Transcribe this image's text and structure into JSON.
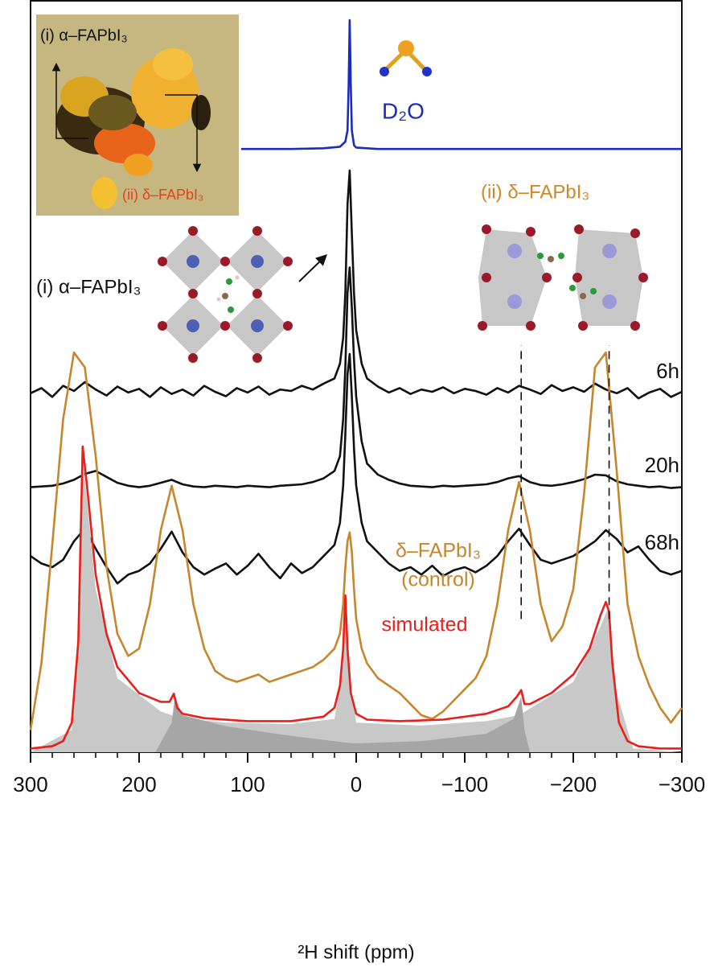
{
  "chart_data": {
    "type": "line",
    "xlabel": "²H shift (ppm)",
    "xlim": [
      300,
      -300
    ],
    "ylim": [
      0,
      100
    ],
    "xticks": [
      300,
      200,
      100,
      0,
      {
        "value": -100,
        "label": "−100"
      },
      {
        "value": -200,
        "label": "−200"
      },
      {
        "value": -300,
        "label": "−300"
      }
    ],
    "xminor": [
      280,
      260,
      240,
      220,
      180,
      160,
      140,
      120,
      80,
      60,
      40,
      20,
      -20,
      -40,
      -60,
      -80,
      -120,
      -140,
      -160,
      -180,
      -220,
      -240,
      -260,
      -280
    ],
    "x": [
      300,
      290,
      280,
      270,
      260,
      250,
      240,
      230,
      220,
      210,
      200,
      190,
      180,
      170,
      160,
      150,
      140,
      130,
      120,
      110,
      100,
      90,
      80,
      70,
      60,
      50,
      40,
      30,
      20,
      15,
      12,
      10,
      8,
      6,
      4,
      2,
      0,
      -5,
      -10,
      -20,
      -30,
      -40,
      -50,
      -60,
      -70,
      -80,
      -90,
      -100,
      -110,
      -120,
      -130,
      -140,
      -150,
      -160,
      -170,
      -180,
      -190,
      -200,
      -210,
      -220,
      -230,
      -240,
      -250,
      -260,
      -270,
      -280,
      -290,
      -300
    ],
    "series": [
      {
        "label": [
          "D₂O"
        ],
        "color": "#1a2bbf",
        "x": [
          106,
          60,
          30,
          15,
          10,
          8,
          7,
          6,
          5,
          4,
          2,
          0,
          -20,
          -100,
          -300
        ],
        "values": [
          81.5,
          81.5,
          81.6,
          81.8,
          82.5,
          84,
          90,
          98.9,
          90,
          84,
          82,
          81.7,
          81.5,
          81.5,
          81.5
        ]
      },
      {
        "label": [
          "6h"
        ],
        "color": "#111111",
        "values": [
          48.5,
          49.2,
          48.0,
          49.5,
          48.8,
          50.0,
          49.0,
          48.2,
          49.4,
          48.6,
          49.1,
          48.0,
          49.3,
          48.4,
          49.0,
          48.2,
          49.5,
          48.7,
          48.1,
          49.2,
          48.6,
          49.4,
          48.3,
          49.0,
          48.8,
          49.5,
          49.0,
          49.8,
          50.5,
          52.5,
          56,
          62,
          74,
          78.6,
          70,
          62,
          57,
          52.5,
          50.5,
          49.4,
          48.6,
          49.2,
          48.4,
          49.0,
          48.7,
          49.3,
          48.5,
          49.1,
          48.8,
          48.3,
          49.2,
          48.6,
          49.5,
          49.0,
          48.4,
          49.6,
          48.8,
          49.3,
          48.7,
          49.8,
          49.0,
          48.5,
          49.2,
          47.8,
          48.6,
          49.1,
          48.0,
          48.7
        ]
      },
      {
        "label": [
          "20h"
        ],
        "color": "#111111",
        "values": [
          35.8,
          35.9,
          36.0,
          36.3,
          36.8,
          37.6,
          38.0,
          37.2,
          36.4,
          36.0,
          35.8,
          36.0,
          36.4,
          36.8,
          36.2,
          35.9,
          35.8,
          36.0,
          35.9,
          35.8,
          36.0,
          35.9,
          35.8,
          36.0,
          36.1,
          36.2,
          36.5,
          37.0,
          38.0,
          40,
          45,
          52,
          62,
          65.5,
          60,
          53,
          48,
          42,
          39,
          37.5,
          36.8,
          36.3,
          36.0,
          35.9,
          35.8,
          36.0,
          35.9,
          36.0,
          36.1,
          36.2,
          36.5,
          37.0,
          37.3,
          36.5,
          36.1,
          36.0,
          36.2,
          36.5,
          36.9,
          37.5,
          37.4,
          36.6,
          36.2,
          36.0,
          35.8,
          35.9,
          35.7,
          35.8
        ]
      },
      {
        "label": [
          "68h"
        ],
        "color": "#111111",
        "values": [
          26.5,
          25.5,
          25.0,
          26.0,
          28.5,
          30.2,
          27.5,
          25.0,
          22.8,
          24.0,
          24.5,
          25.5,
          27.5,
          29.8,
          27.0,
          25.0,
          24.0,
          24.8,
          25.5,
          24.0,
          25.2,
          26.8,
          25.0,
          23.5,
          25.5,
          24.2,
          25.0,
          26.5,
          28.0,
          31,
          36,
          43,
          51,
          53.8,
          48,
          41,
          36,
          31,
          28.5,
          27.0,
          25.5,
          24.5,
          25.0,
          24.0,
          25.2,
          23.8,
          24.6,
          25.0,
          24.3,
          25.2,
          26.5,
          28.5,
          30.2,
          28.0,
          26.0,
          25.5,
          26.0,
          26.5,
          27.5,
          28.5,
          30.0,
          28.8,
          27.0,
          27.8,
          26.0,
          24.5,
          24.0,
          24.5
        ]
      },
      {
        "label": [
          "δ–FAPbI₃",
          "(control)"
        ],
        "color": "#c8862c",
        "values": [
          3.0,
          12,
          28,
          45,
          54,
          52,
          40,
          25,
          16,
          13,
          14,
          20,
          30,
          36,
          30,
          20,
          14,
          11,
          10,
          9.5,
          10,
          10.5,
          9.5,
          10,
          10.5,
          11,
          11.5,
          12.5,
          14,
          16,
          20,
          25,
          28.5,
          29.7,
          27,
          22,
          18,
          14,
          12,
          10,
          9,
          8,
          6.5,
          5,
          4.5,
          5.5,
          7,
          8.5,
          10,
          13,
          20,
          30,
          36.5,
          30,
          20,
          15,
          17,
          22,
          35,
          52,
          54,
          38,
          20,
          13,
          9,
          6,
          4,
          6
        ]
      },
      {
        "color": "#c8c8c8",
        "fill": true,
        "x": [
          300,
          262,
          256,
          252,
          240,
          220,
          180,
          170,
          160,
          120,
          60,
          20,
          12,
          10,
          8,
          0,
          -60,
          -120,
          -150,
          -200,
          -225,
          -232,
          -240,
          -255,
          -300
        ],
        "values": [
          0,
          3,
          14,
          40,
          22,
          10,
          5.5,
          5,
          4.6,
          4.0,
          3.8,
          4.5,
          12,
          21,
          12,
          4,
          3.6,
          4.2,
          5,
          9.5,
          17,
          19.5,
          8,
          0.5,
          0
        ]
      },
      {
        "color": "#a6a6a6",
        "fill": true,
        "x": [
          185,
          170,
          167,
          160,
          120,
          60,
          20,
          10,
          0,
          -60,
          -120,
          -145,
          -152,
          -155,
          -160
        ],
        "values": [
          0,
          4,
          7.5,
          5,
          3.5,
          2.2,
          1.5,
          1.3,
          1.2,
          1.5,
          2.5,
          4.5,
          7.5,
          3,
          0
        ]
      },
      {
        "label": [
          "simulated"
        ],
        "color": "#e8201c",
        "x": [
          300,
          280,
          270,
          262,
          256,
          252,
          248,
          240,
          230,
          220,
          200,
          180,
          172,
          168,
          165,
          160,
          140,
          100,
          60,
          30,
          20,
          15,
          12,
          10,
          8,
          5,
          0,
          -10,
          -40,
          -80,
          -120,
          -140,
          -148,
          -152,
          -155,
          -160,
          -180,
          -200,
          -215,
          -225,
          -230,
          -233,
          -236,
          -242,
          -250,
          -260,
          -280,
          -300
        ],
        "values": [
          0.5,
          0.8,
          1.5,
          4,
          15,
          41.3,
          36,
          24,
          16,
          11.5,
          8,
          6.8,
          6.8,
          7.9,
          6.0,
          5.2,
          4.6,
          4.2,
          4.2,
          4.8,
          6,
          9,
          14,
          21.2,
          14,
          8,
          5.2,
          4.4,
          4.2,
          4.4,
          5.2,
          6.2,
          7.5,
          8.4,
          6.5,
          6.5,
          8,
          10.5,
          14,
          18.5,
          20.3,
          19,
          12,
          4,
          1.5,
          0.8,
          0.5,
          0.5
        ]
      }
    ],
    "dashed_lines": [
      {
        "x": -152,
        "y": [
          18,
          55
        ]
      },
      {
        "x": -233,
        "y": [
          18,
          55
        ]
      }
    ],
    "annotations": [
      {
        "text": "(i) α–FAPbI₃",
        "color": "#111111"
      },
      {
        "text": "(ii) δ–FAPbI₃",
        "color": "#e8401c"
      },
      {
        "text": "(i) α–FAPbI₃",
        "color": "#111111"
      },
      {
        "text": "(ii) δ–FAPbI₃",
        "color": "#d4862a"
      }
    ]
  }
}
